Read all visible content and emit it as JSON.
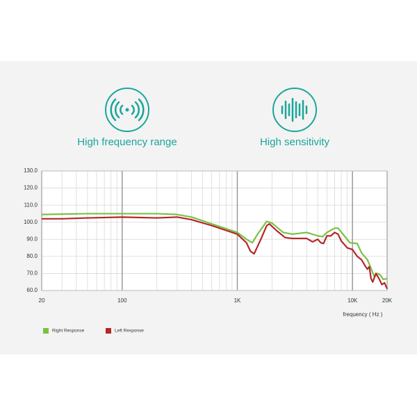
{
  "features": [
    {
      "label": "High frequency range"
    },
    {
      "label": "High sensitivity"
    }
  ],
  "chart_data": {
    "type": "line",
    "log_x": true,
    "grid": true,
    "x_label": "frequency ( Hz )",
    "xlim": [
      20,
      20000
    ],
    "xticks": [
      20,
      100,
      {
        "value": 1000,
        "label": "1K"
      },
      {
        "value": 10000,
        "label": "10K"
      },
      {
        "value": 20000,
        "label": "20K"
      }
    ],
    "ylim": [
      60,
      130
    ],
    "yticks": [
      {
        "value": 60,
        "label": "60.0"
      },
      {
        "value": 70,
        "label": "70.0"
      },
      {
        "value": 80,
        "label": "80.0"
      },
      {
        "value": 90,
        "label": "90.0"
      },
      {
        "value": 100,
        "label": "100.0"
      },
      {
        "value": 110,
        "label": "110.0"
      },
      {
        "value": 120,
        "label": "120.0"
      },
      {
        "value": 130,
        "label": "130.0"
      }
    ],
    "legend": "bottom-left",
    "series": [
      {
        "name": "Right Response",
        "color": "#7ac143",
        "x": [
          20,
          50,
          100,
          200,
          300,
          400,
          600,
          1000,
          1200,
          1350,
          1500,
          1800,
          2000,
          2500,
          3000,
          4000,
          5000,
          5500,
          6000,
          7000,
          7500,
          8500,
          9500,
          11000,
          12000,
          13500,
          14500,
          15500,
          16500,
          17500,
          18500,
          20000
        ],
        "values": [
          104.5,
          105,
          105,
          105,
          104.5,
          103,
          99,
          94,
          90,
          88,
          93,
          100.5,
          99.5,
          94,
          93,
          94,
          92,
          91.5,
          94,
          96.5,
          96.5,
          92,
          88,
          87.5,
          82,
          78,
          73,
          68,
          70,
          69,
          66.5,
          67
        ]
      },
      {
        "name": "Left Response",
        "color": "#b5262b",
        "x": [
          20,
          30,
          50,
          100,
          200,
          300,
          400,
          600,
          1000,
          1200,
          1300,
          1400,
          1600,
          1800,
          1900,
          2200,
          2600,
          3000,
          4000,
          4500,
          5000,
          5300,
          5600,
          6000,
          6500,
          7000,
          7500,
          8000,
          9000,
          10000,
          11000,
          12000,
          13000,
          13500,
          14000,
          14500,
          15000,
          16000,
          17000,
          18000,
          19000,
          20000
        ],
        "values": [
          102,
          102,
          102.5,
          103,
          102.5,
          103,
          101.5,
          98,
          93,
          88,
          83,
          81.5,
          90,
          98,
          99,
          95,
          91,
          90.5,
          90.5,
          88.5,
          90,
          88,
          87.5,
          92,
          92,
          94,
          93,
          89,
          85,
          84,
          80,
          78,
          74,
          72.5,
          74,
          67,
          65,
          70,
          67,
          63.5,
          64.5,
          61
        ]
      }
    ]
  }
}
